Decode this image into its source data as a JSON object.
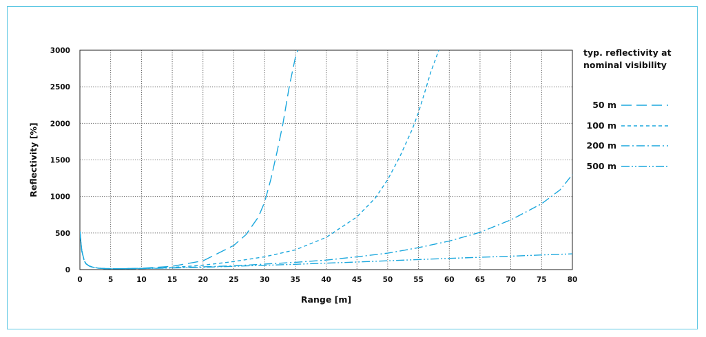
{
  "chart_data": {
    "type": "line",
    "title": "",
    "xlabel": "Range [m]",
    "ylabel": "Reflectivity [%]",
    "xlim": [
      0,
      80
    ],
    "ylim": [
      0,
      3000
    ],
    "xticks": [
      "0",
      "5",
      "10",
      "15",
      "20",
      "25",
      "30",
      "35",
      "40",
      "45",
      "50",
      "55",
      "60",
      "65",
      "70",
      "75",
      "80"
    ],
    "yticks": [
      "0",
      "500",
      "1000",
      "1500",
      "2000",
      "2500",
      "3000"
    ],
    "grid": true,
    "legend_title": [
      "typ. reflectivity at",
      "nominal visibility"
    ],
    "legend_position": "right",
    "line_color": "#1aa7dd",
    "series": [
      {
        "name": "50 m",
        "dash": "long-dash",
        "x": [
          0,
          0.3,
          0.7,
          1,
          1.5,
          2,
          3,
          4,
          5,
          7,
          10,
          15,
          20,
          25,
          27,
          29,
          30,
          31,
          32,
          33,
          34,
          35,
          35.4
        ],
        "y": [
          520,
          260,
          120,
          80,
          50,
          35,
          20,
          14,
          12,
          12,
          18,
          45,
          120,
          330,
          480,
          720,
          920,
          1230,
          1600,
          2000,
          2500,
          2900,
          3000
        ]
      },
      {
        "name": "100 m",
        "dash": "short-dash",
        "x": [
          0,
          0.3,
          0.7,
          1,
          1.5,
          2,
          3,
          4,
          5,
          7,
          10,
          15,
          20,
          25,
          30,
          35,
          40,
          45,
          48,
          50,
          52,
          54,
          55,
          56,
          57,
          58.3
        ],
        "y": [
          520,
          260,
          120,
          80,
          50,
          35,
          20,
          14,
          12,
          12,
          16,
          30,
          60,
          110,
          175,
          270,
          440,
          720,
          980,
          1230,
          1550,
          1920,
          2150,
          2420,
          2700,
          3000
        ]
      },
      {
        "name": "200 m",
        "dash": "dash-dot",
        "x": [
          0,
          0.3,
          0.7,
          1,
          1.5,
          2,
          3,
          4,
          5,
          7,
          10,
          15,
          20,
          25,
          30,
          35,
          40,
          45,
          50,
          55,
          60,
          65,
          70,
          75,
          78,
          80
        ],
        "y": [
          520,
          260,
          120,
          80,
          50,
          35,
          20,
          14,
          12,
          12,
          15,
          25,
          38,
          52,
          75,
          100,
          130,
          175,
          225,
          300,
          390,
          510,
          680,
          900,
          1090,
          1300
        ]
      },
      {
        "name": "500 m",
        "dash": "dash-dot-dot",
        "x": [
          0,
          0.3,
          0.7,
          1,
          1.5,
          2,
          3,
          4,
          5,
          7,
          10,
          15,
          20,
          25,
          30,
          35,
          40,
          45,
          50,
          55,
          60,
          65,
          70,
          75,
          80
        ],
        "y": [
          520,
          260,
          120,
          80,
          50,
          35,
          20,
          14,
          12,
          12,
          14,
          22,
          32,
          45,
          58,
          72,
          88,
          103,
          120,
          137,
          153,
          168,
          183,
          200,
          215
        ]
      }
    ]
  }
}
